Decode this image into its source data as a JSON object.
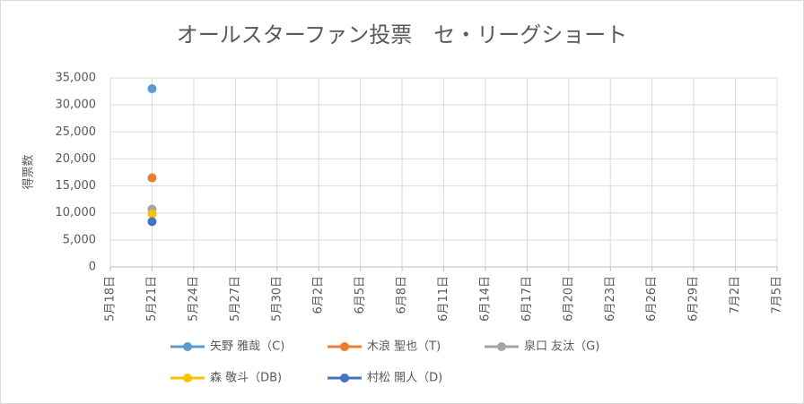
{
  "chart_data": {
    "type": "line",
    "title": "オールスターファン投票　セ・リーグショート",
    "y_label": "得票数",
    "x": [
      "5月21日"
    ],
    "xticks": [
      "5月18日",
      "5月21日",
      "5月24日",
      "5月27日",
      "5月30日",
      "6月2日",
      "6月5日",
      "6月8日",
      "6月11日",
      "6月14日",
      "6月17日",
      "6月20日",
      "6月23日",
      "6月26日",
      "6月29日",
      "7月2日",
      "7月5日"
    ],
    "ylim": [
      0,
      35000
    ],
    "yticks": [
      0,
      {
        "value": 5000,
        "label": "5,000"
      },
      {
        "value": 10000,
        "label": "10,000"
      },
      {
        "value": 15000,
        "label": "15,000"
      },
      {
        "value": 20000,
        "label": "20,000"
      },
      {
        "value": 25000,
        "label": "25,000"
      },
      {
        "value": 30000,
        "label": "30,000"
      },
      {
        "value": 35000,
        "label": "35,000"
      }
    ],
    "grid": true,
    "legend": "bottom",
    "series": [
      {
        "name": "矢野 雅哉（C)",
        "color": "#5b9bd5",
        "values": [
          33000
        ]
      },
      {
        "name": "木浪 聖也（T)",
        "color": "#ed7d31",
        "values": [
          16500
        ]
      },
      {
        "name": "泉口 友汰（G)",
        "color": "#a5a5a5",
        "values": [
          10700
        ]
      },
      {
        "name": "森 敬斗（DB)",
        "color": "#ffc000",
        "values": [
          9800
        ]
      },
      {
        "name": "村松 開人（D)",
        "color": "#4472c4",
        "values": [
          8400
        ]
      }
    ]
  }
}
